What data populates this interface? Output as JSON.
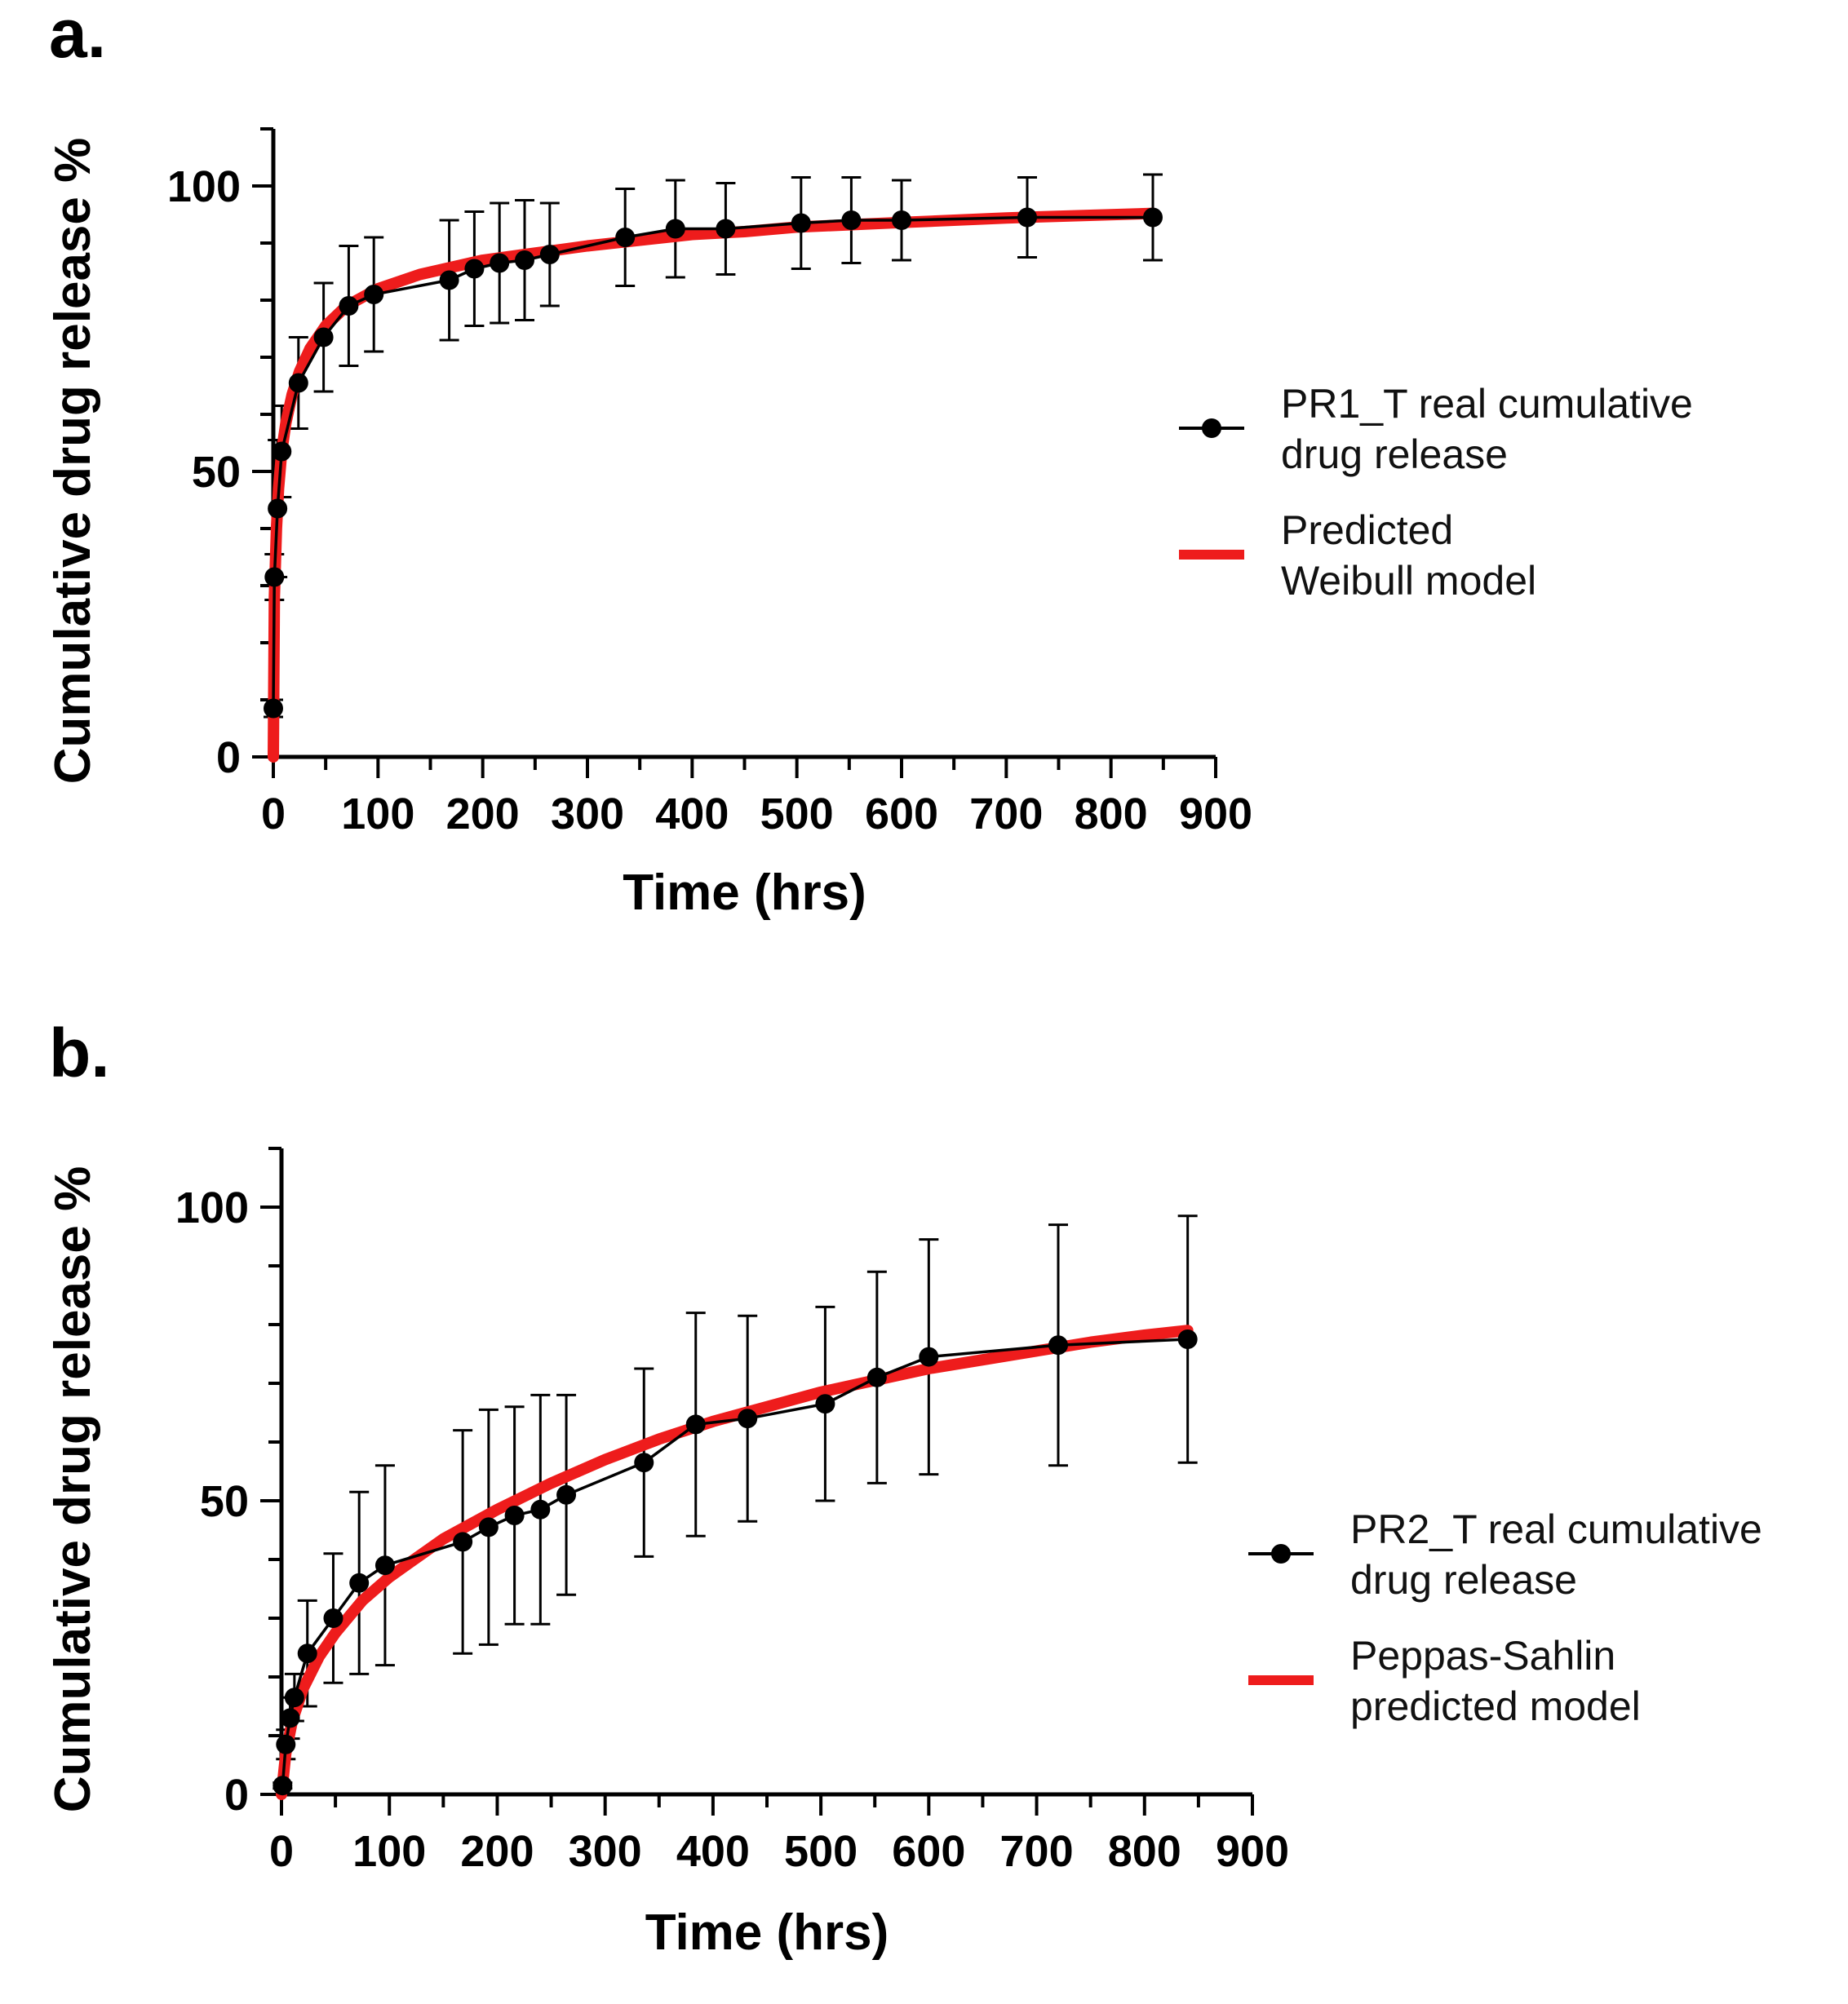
{
  "chart_data": [
    {
      "panel": "a.",
      "type": "line",
      "xlabel": "Time (hrs)",
      "ylabel": "Cumulative drug release %",
      "xlim": [
        0,
        900
      ],
      "ylim": [
        0,
        110
      ],
      "xticks": [
        0,
        100,
        200,
        300,
        400,
        500,
        600,
        700,
        800,
        900
      ],
      "yticks": [
        0,
        50,
        100
      ],
      "legend_position": "right",
      "series": [
        {
          "name": "PR1_T real cumulative drug release",
          "legend_lines": [
            "PR1_T real cumulative",
            "drug release"
          ],
          "kind": "points-line-errorbars",
          "color": "#000000",
          "x": [
            0,
            1,
            4,
            8,
            24,
            48,
            72,
            96,
            168,
            192,
            216,
            240,
            264,
            336,
            384,
            432,
            504,
            552,
            600,
            720,
            840
          ],
          "y": [
            8.5,
            31.5,
            43.5,
            53.5,
            65.5,
            73.5,
            79,
            81,
            83.5,
            85.5,
            86.5,
            87,
            88,
            91,
            92.5,
            92.5,
            93.5,
            94,
            94,
            94.5,
            94.5
          ],
          "err": [
            1.5,
            4,
            12,
            8,
            8,
            9.5,
            10.5,
            10,
            10.5,
            10,
            10.5,
            10.5,
            9,
            8.5,
            8.5,
            8,
            8,
            7.5,
            7,
            7,
            7.5
          ]
        },
        {
          "name": "Predicted Weibull model",
          "legend_lines": [
            "Predicted",
            "Weibull model"
          ],
          "kind": "fit-line",
          "color": "#ee1c1c",
          "x": [
            0,
            1,
            3,
            5,
            8,
            12,
            18,
            25,
            35,
            50,
            70,
            100,
            140,
            200,
            260,
            300,
            350,
            400,
            450,
            500,
            600,
            700,
            840
          ],
          "y": [
            0,
            28,
            40,
            47,
            53.5,
            58.5,
            63.5,
            67.5,
            71.5,
            75.5,
            79,
            82,
            84.5,
            87,
            88.5,
            89.5,
            90.5,
            91.5,
            92,
            92.8,
            93.6,
            94.4,
            95.2
          ]
        }
      ]
    },
    {
      "panel": "b.",
      "type": "line",
      "xlabel": "Time (hrs)",
      "ylabel": "Cumulative drug release %",
      "xlim": [
        0,
        900
      ],
      "ylim": [
        0,
        110
      ],
      "xticks": [
        0,
        100,
        200,
        300,
        400,
        500,
        600,
        700,
        800,
        900
      ],
      "yticks": [
        0,
        50,
        100
      ],
      "legend_position": "right",
      "series": [
        {
          "name": "PR2_T real cumulative drug release",
          "legend_lines": [
            "PR2_T real cumulative",
            "drug release"
          ],
          "kind": "points-line-errorbars",
          "color": "#000000",
          "x": [
            1,
            4,
            8,
            12,
            24,
            48,
            72,
            96,
            168,
            192,
            216,
            240,
            264,
            336,
            384,
            432,
            504,
            552,
            600,
            720,
            840
          ],
          "y": [
            1.5,
            8.5,
            13,
            16.5,
            24,
            30,
            36,
            39,
            43,
            45.5,
            47.5,
            48.5,
            51,
            56.5,
            63,
            64,
            66.5,
            71,
            74.5,
            76.5,
            77.5
          ],
          "err": [
            0.5,
            2.5,
            3.5,
            4,
            9,
            11,
            15.5,
            17,
            19,
            20,
            18.5,
            19.5,
            17,
            16,
            19,
            17.5,
            16.5,
            18,
            20,
            20.5,
            21
          ]
        },
        {
          "name": "Peppas-Sahlin predicted model",
          "legend_lines": [
            "Peppas-Sahlin",
            "predicted model"
          ],
          "kind": "fit-line",
          "color": "#ee1c1c",
          "x": [
            0,
            4,
            10,
            20,
            35,
            50,
            75,
            100,
            150,
            200,
            250,
            300,
            350,
            400,
            450,
            500,
            550,
            600,
            650,
            700,
            750,
            800,
            840
          ],
          "y": [
            0,
            7,
            12.5,
            18,
            23.5,
            27.5,
            33,
            37,
            43.5,
            48.5,
            53,
            57,
            60.5,
            63.5,
            66,
            68.5,
            70.5,
            72.5,
            74,
            75.5,
            77,
            78.2,
            79
          ]
        }
      ]
    }
  ]
}
